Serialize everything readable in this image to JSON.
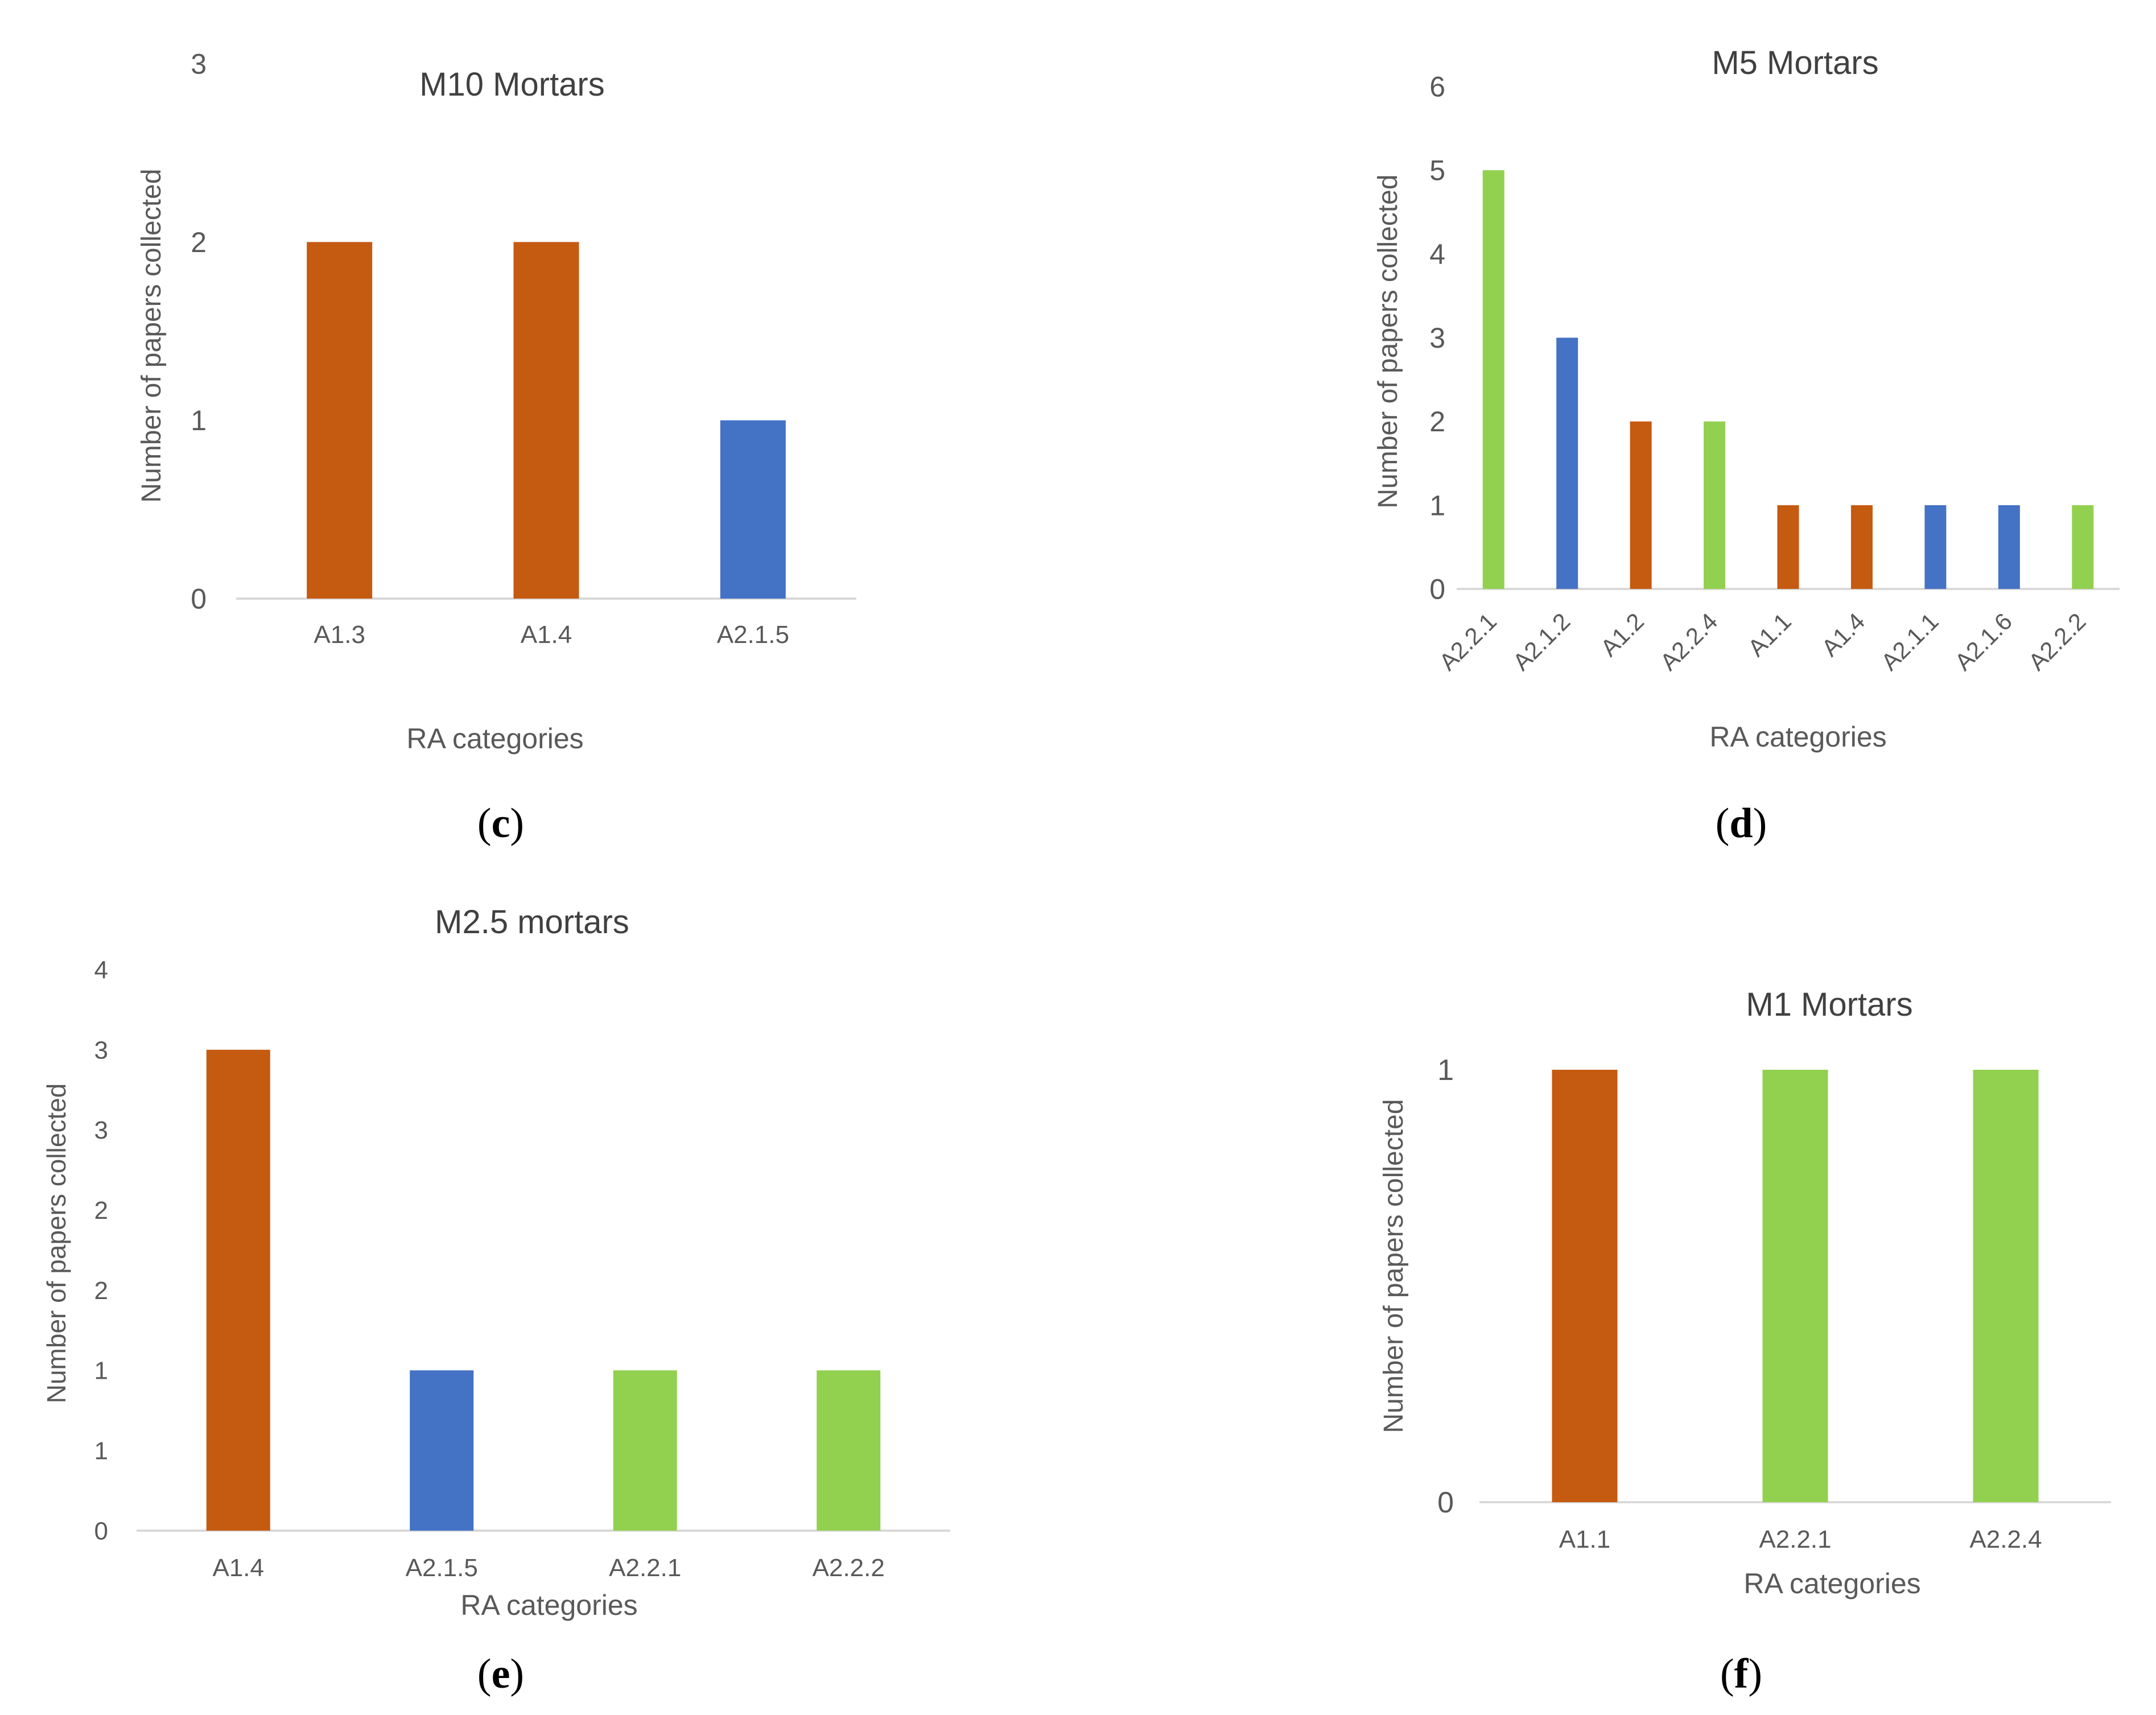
{
  "colors": {
    "orange": "#C55A11",
    "blue": "#4472C4",
    "green": "#92D050",
    "axis": "#D9D9D9",
    "text": "#595959"
  },
  "chart_data": [
    {
      "id": "c",
      "type": "bar",
      "title": "M10 Mortars",
      "categories": [
        "A1.3",
        "A1.4",
        "A2.1.5"
      ],
      "values": [
        2,
        2,
        1
      ],
      "bar_colors": [
        "orange",
        "orange",
        "blue"
      ],
      "xlabel": "RA categories",
      "ylabel": "Number of papers collected",
      "ylim": [
        0,
        3
      ],
      "yticks": [
        "0",
        "1",
        "2",
        "3"
      ],
      "x_rotated": false
    },
    {
      "id": "d",
      "type": "bar",
      "title": "M5 Mortars",
      "categories": [
        "A2.2.1",
        "A2.1.2",
        "A1.2",
        "A2.2.4",
        "A1.1",
        "A1.4",
        "A2.1.1",
        "A2.1.6",
        "A2.2.2"
      ],
      "values": [
        5,
        3,
        2,
        2,
        1,
        1,
        1,
        1,
        1
      ],
      "bar_colors": [
        "green",
        "blue",
        "orange",
        "green",
        "orange",
        "orange",
        "blue",
        "blue",
        "green"
      ],
      "xlabel": "RA categories",
      "ylabel": "Number of papers collected",
      "ylim": [
        0,
        6
      ],
      "yticks": [
        "0",
        "1",
        "2",
        "3",
        "4",
        "5",
        "6"
      ],
      "x_rotated": true
    },
    {
      "id": "e",
      "type": "bar",
      "title": "M2.5 mortars",
      "categories": [
        "A1.4",
        "A2.1.5",
        "A2.2.1",
        "A2.2.2"
      ],
      "values": [
        3,
        1,
        1,
        1
      ],
      "bar_colors": [
        "orange",
        "blue",
        "green",
        "green"
      ],
      "xlabel": "RA categories",
      "ylabel": "Number of papers collected",
      "ylim": [
        0,
        3.5
      ],
      "yticks": [
        "0",
        "1",
        "1",
        "2",
        "2",
        "3",
        "3",
        "4"
      ],
      "x_rotated": false
    },
    {
      "id": "f",
      "type": "bar",
      "title": "M1 Mortars",
      "categories": [
        "A1.1",
        "A2.2.1",
        "A2.2.4"
      ],
      "values": [
        1,
        1,
        1
      ],
      "bar_colors": [
        "orange",
        "green",
        "green"
      ],
      "xlabel": "RA categories",
      "ylabel": "Number of papers collected",
      "ylim": [
        0,
        1
      ],
      "yticks": [
        "0",
        "1"
      ],
      "x_rotated": false
    }
  ],
  "panel_labels": [
    "c",
    "d",
    "e",
    "f"
  ]
}
